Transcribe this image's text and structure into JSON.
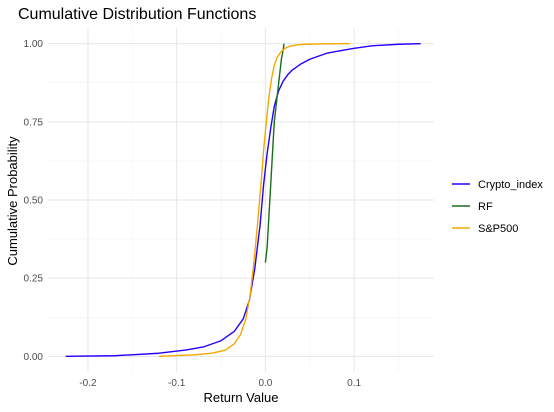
{
  "chart_data": {
    "type": "line",
    "title": "Cumulative Distribution Functions",
    "xlabel": "Return Value",
    "ylabel": "Cumulative Probability",
    "xlim": [
      -0.245,
      0.19
    ],
    "ylim": [
      -0.05,
      1.05
    ],
    "x_ticks": [
      -0.2,
      -0.1,
      0.0,
      0.1
    ],
    "x_tick_labels": [
      "-0.2",
      "-0.1",
      "0.0",
      "0.1"
    ],
    "y_ticks": [
      0.0,
      0.25,
      0.5,
      0.75,
      1.0
    ],
    "y_tick_labels": [
      "0.00",
      "0.25",
      "0.50",
      "0.75",
      "1.00"
    ],
    "grid": true,
    "legend_position": "right",
    "series": [
      {
        "name": "Crypto_index",
        "color": "#2200ff",
        "x": [
          -0.225,
          -0.17,
          -0.12,
          -0.09,
          -0.07,
          -0.05,
          -0.035,
          -0.025,
          -0.018,
          -0.012,
          -0.006,
          -0.002,
          0.002,
          0.006,
          0.01,
          0.015,
          0.02,
          0.025,
          0.03,
          0.035,
          0.04,
          0.05,
          0.06,
          0.07,
          0.08,
          0.1,
          0.12,
          0.15,
          0.175
        ],
        "y": [
          0.0,
          0.002,
          0.01,
          0.02,
          0.03,
          0.05,
          0.08,
          0.12,
          0.18,
          0.28,
          0.42,
          0.55,
          0.65,
          0.73,
          0.8,
          0.85,
          0.88,
          0.9,
          0.915,
          0.925,
          0.935,
          0.95,
          0.96,
          0.97,
          0.975,
          0.985,
          0.993,
          0.998,
          1.0
        ]
      },
      {
        "name": "RF",
        "color": "#1a6e1a",
        "x": [
          0.0,
          0.002,
          0.004,
          0.006,
          0.008,
          0.01,
          0.012,
          0.014,
          0.016,
          0.018,
          0.02,
          0.021
        ],
        "y": [
          0.3,
          0.35,
          0.45,
          0.55,
          0.65,
          0.75,
          0.8,
          0.85,
          0.9,
          0.95,
          0.98,
          1.0
        ]
      },
      {
        "name": "S&P500",
        "color": "#f5a800",
        "x": [
          -0.12,
          -0.08,
          -0.06,
          -0.045,
          -0.035,
          -0.028,
          -0.022,
          -0.017,
          -0.013,
          -0.009,
          -0.005,
          -0.002,
          0.001,
          0.004,
          0.007,
          0.01,
          0.013,
          0.017,
          0.022,
          0.028,
          0.035,
          0.045,
          0.06,
          0.08,
          0.095
        ],
        "y": [
          0.0,
          0.005,
          0.01,
          0.02,
          0.04,
          0.07,
          0.12,
          0.2,
          0.3,
          0.42,
          0.55,
          0.66,
          0.75,
          0.83,
          0.89,
          0.93,
          0.955,
          0.972,
          0.985,
          0.992,
          0.996,
          0.998,
          0.999,
          1.0,
          1.0
        ]
      }
    ]
  }
}
